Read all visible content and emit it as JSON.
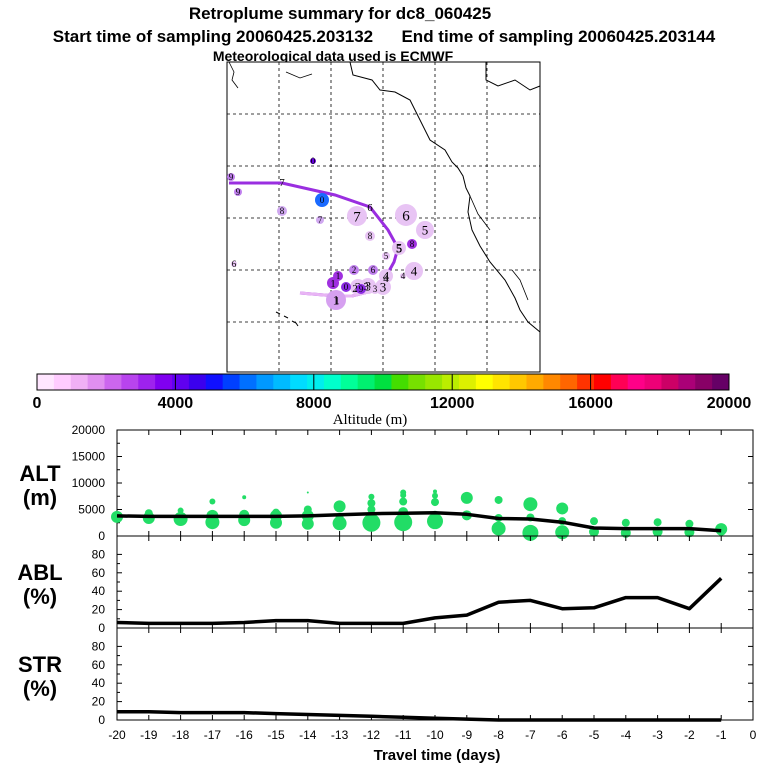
{
  "header": {
    "title": "Retroplume summary for dc8_060425",
    "sampling_line": "Start time of sampling 20060425.203132      End time of sampling 20060425.203144",
    "met_line": "Meteorological data used is ECMWF"
  },
  "colorbar": {
    "label": "Altitude (m)",
    "ticks": [
      "0",
      "4000",
      "8000",
      "12000",
      "16000",
      "20000"
    ],
    "colors": [
      "#ffe6ff",
      "#ffccff",
      "#f0b0f5",
      "#e08ff0",
      "#cc66ee",
      "#b844ee",
      "#9e22ee",
      "#8000f0",
      "#6000f0",
      "#3b00ee",
      "#1010ff",
      "#0040ff",
      "#0070ff",
      "#0099ff",
      "#00bbff",
      "#00dcff",
      "#00eeee",
      "#00ffcc",
      "#00ff99",
      "#00f070",
      "#00e040",
      "#44dd00",
      "#77e000",
      "#99e600",
      "#bbee00",
      "#ddf000",
      "#ffff00",
      "#ffe400",
      "#ffc800",
      "#ffaa00",
      "#ff8800",
      "#ff6600",
      "#ff3300",
      "#ff0000",
      "#ff0055",
      "#ff0088",
      "#ee0077",
      "#cc0066",
      "#aa0077",
      "#880066",
      "#660066"
    ]
  },
  "map": {
    "numbers": [
      {
        "label": "1",
        "color": "#d6a0f0"
      },
      {
        "label": "2",
        "color": "#e8c4f4"
      },
      {
        "label": "3",
        "color": "#e8c4f4"
      },
      {
        "label": "3",
        "color": "#e8c4f4"
      },
      {
        "label": "4",
        "color": "#e8c4f4"
      },
      {
        "label": "4",
        "color": "#e8c4f4"
      },
      {
        "label": "5",
        "color": "#e8c4f4"
      },
      {
        "label": "5",
        "color": "#e8c4f4"
      },
      {
        "label": "6",
        "color": "#e8c4f4"
      },
      {
        "label": "7",
        "color": "#e8c4f4"
      },
      {
        "label": "7",
        "color": "#d0a8f0"
      },
      {
        "label": "8",
        "color": "#d0a8f0"
      },
      {
        "label": "8",
        "color": "#e8c4f4"
      },
      {
        "label": "9",
        "color": "#c080ee"
      },
      {
        "label": "9",
        "color": "#c080ee"
      },
      {
        "label": "0",
        "color": "#1a6aff"
      },
      {
        "label": "0",
        "color": "#6600dd"
      },
      {
        "label": "6",
        "color": "#e8c4f4"
      },
      {
        "label": "1",
        "color": "#a030e0"
      },
      {
        "label": "5",
        "color": "#e8c4f4"
      },
      {
        "label": "6",
        "color": "#c080ee"
      },
      {
        "label": "4",
        "color": "#e8c4f4"
      },
      {
        "label": "3",
        "color": "#e8c4f4"
      },
      {
        "label": "2",
        "color": "#c080ee"
      },
      {
        "label": "1",
        "color": "#a030e0"
      },
      {
        "label": "0",
        "color": "#8a2be2"
      },
      {
        "label": "9",
        "color": "#8a2be2"
      },
      {
        "label": "8",
        "color": "#a030e0"
      }
    ],
    "path_labels": [
      "1",
      "2",
      "3",
      "4",
      "5",
      "6",
      "7"
    ]
  },
  "chart_data": [
    {
      "type": "scatter+line",
      "title": "ALT (m)",
      "ylabel_line1": "ALT",
      "ylabel_line2": "(m)",
      "ylim": [
        0,
        20000
      ],
      "yticks": [
        "20000",
        "15000",
        "10000",
        "5000",
        "0"
      ],
      "x": [
        -20,
        -19,
        -18,
        -17,
        -16,
        -15,
        -14,
        -13,
        -12,
        -11,
        -10,
        -9,
        -8,
        -7,
        -6,
        -5,
        -4,
        -3,
        -2,
        -1
      ],
      "line_values": [
        3800,
        3700,
        3700,
        3700,
        3700,
        3700,
        3800,
        4000,
        4200,
        4300,
        4400,
        4100,
        3300,
        3200,
        2600,
        1500,
        1400,
        1400,
        1400,
        1000
      ],
      "scatter_points": [
        {
          "x": -20,
          "y": 3600,
          "s": 6
        },
        {
          "x": -19,
          "y": 3400,
          "s": 6
        },
        {
          "x": -19,
          "y": 4300,
          "s": 4
        },
        {
          "x": -18,
          "y": 3200,
          "s": 7
        },
        {
          "x": -18,
          "y": 4800,
          "s": 3
        },
        {
          "x": -17,
          "y": 2600,
          "s": 7
        },
        {
          "x": -17,
          "y": 3800,
          "s": 6
        },
        {
          "x": -17,
          "y": 6500,
          "s": 3
        },
        {
          "x": -16,
          "y": 3000,
          "s": 6
        },
        {
          "x": -16,
          "y": 4000,
          "s": 5
        },
        {
          "x": -16,
          "y": 7300,
          "s": 2
        },
        {
          "x": -15,
          "y": 2500,
          "s": 6
        },
        {
          "x": -15,
          "y": 3800,
          "s": 6
        },
        {
          "x": -15,
          "y": 4400,
          "s": 4
        },
        {
          "x": -14,
          "y": 2300,
          "s": 6
        },
        {
          "x": -14,
          "y": 3800,
          "s": 6
        },
        {
          "x": -14,
          "y": 5000,
          "s": 4
        },
        {
          "x": -14,
          "y": 8200,
          "s": 1
        },
        {
          "x": -13,
          "y": 2400,
          "s": 7
        },
        {
          "x": -13,
          "y": 5600,
          "s": 6
        },
        {
          "x": -13,
          "y": 3500,
          "s": 4
        },
        {
          "x": -12,
          "y": 2500,
          "s": 9
        },
        {
          "x": -12,
          "y": 5000,
          "s": 4
        },
        {
          "x": -12,
          "y": 6200,
          "s": 4
        },
        {
          "x": -12,
          "y": 7400,
          "s": 3
        },
        {
          "x": -11,
          "y": 2600,
          "s": 9
        },
        {
          "x": -11,
          "y": 4500,
          "s": 5
        },
        {
          "x": -11,
          "y": 6500,
          "s": 4
        },
        {
          "x": -11,
          "y": 7700,
          "s": 3
        },
        {
          "x": -11,
          "y": 8200,
          "s": 3
        },
        {
          "x": -10,
          "y": 2800,
          "s": 8
        },
        {
          "x": -10,
          "y": 4000,
          "s": 4
        },
        {
          "x": -10,
          "y": 6400,
          "s": 4
        },
        {
          "x": -10,
          "y": 7600,
          "s": 3
        },
        {
          "x": -10,
          "y": 8400,
          "s": 2
        },
        {
          "x": -9,
          "y": 3900,
          "s": 5
        },
        {
          "x": -9,
          "y": 7200,
          "s": 6
        },
        {
          "x": -8,
          "y": 1400,
          "s": 7
        },
        {
          "x": -8,
          "y": 3400,
          "s": 4
        },
        {
          "x": -8,
          "y": 6800,
          "s": 4
        },
        {
          "x": -7,
          "y": 600,
          "s": 8
        },
        {
          "x": -7,
          "y": 3500,
          "s": 4
        },
        {
          "x": -7,
          "y": 6000,
          "s": 7
        },
        {
          "x": -6,
          "y": 700,
          "s": 7
        },
        {
          "x": -6,
          "y": 2800,
          "s": 4
        },
        {
          "x": -6,
          "y": 5200,
          "s": 6
        },
        {
          "x": -5,
          "y": 800,
          "s": 5
        },
        {
          "x": -5,
          "y": 2800,
          "s": 4
        },
        {
          "x": -4,
          "y": 600,
          "s": 5
        },
        {
          "x": -4,
          "y": 2500,
          "s": 4
        },
        {
          "x": -3,
          "y": 800,
          "s": 5
        },
        {
          "x": -3,
          "y": 2600,
          "s": 4
        },
        {
          "x": -2,
          "y": 700,
          "s": 5
        },
        {
          "x": -2,
          "y": 2300,
          "s": 4
        },
        {
          "x": -1,
          "y": 1300,
          "s": 6
        },
        {
          "x": -1,
          "y": 1000,
          "s": 5
        }
      ]
    },
    {
      "type": "line",
      "title": "ABL (%)",
      "ylabel_line1": "ABL",
      "ylabel_line2": "(%)",
      "ylim": [
        0,
        100
      ],
      "yticks": [
        "80",
        "60",
        "40",
        "20",
        "0"
      ],
      "x": [
        -20,
        -19,
        -18,
        -17,
        -16,
        -15,
        -14,
        -13,
        -12,
        -11,
        -10,
        -9,
        -8,
        -7,
        -6,
        -5,
        -4,
        -3,
        -2,
        -1
      ],
      "values": [
        6,
        5,
        5,
        5,
        6,
        8,
        8,
        5,
        5,
        5,
        11,
        14,
        28,
        30,
        21,
        22,
        33,
        33,
        21,
        54
      ]
    },
    {
      "type": "line",
      "title": "STR (%)",
      "ylabel_line1": "STR",
      "ylabel_line2": "(%)",
      "ylim": [
        0,
        100
      ],
      "yticks": [
        "80",
        "60",
        "40",
        "20",
        "0"
      ],
      "x": [
        -20,
        -19,
        -18,
        -17,
        -16,
        -15,
        -14,
        -13,
        -12,
        -11,
        -10,
        -9,
        -8,
        -7,
        -6,
        -5,
        -4,
        -3,
        -2,
        -1
      ],
      "values": [
        9,
        9,
        8,
        8,
        8,
        7,
        6,
        5,
        4,
        3,
        2,
        1,
        0,
        0,
        0,
        0,
        0,
        0,
        0,
        0
      ],
      "xlabel": "Travel time (days)",
      "xticks": [
        "-20",
        "-19",
        "-18",
        "-17",
        "-16",
        "-15",
        "-14",
        "-13",
        "-12",
        "-11",
        "-10",
        "-9",
        "-8",
        "-7",
        "-6",
        "-5",
        "-4",
        "-3",
        "-2",
        "-1",
        "0"
      ],
      "xlim": [
        -20,
        0
      ]
    }
  ]
}
